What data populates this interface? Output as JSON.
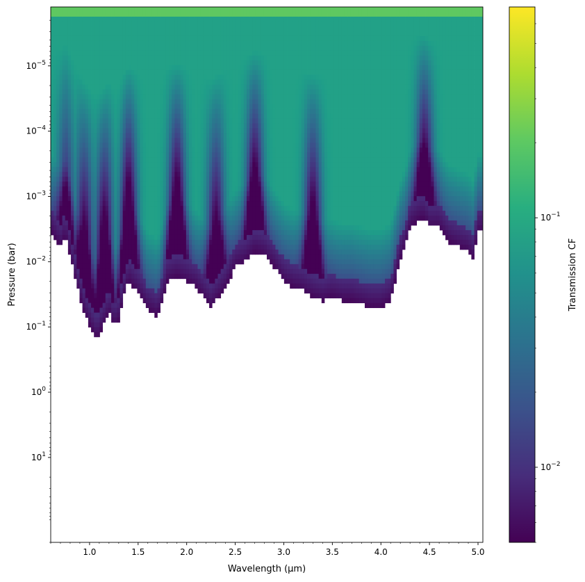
{
  "chart_data": {
    "type": "heatmap",
    "title": "",
    "xlabel": "Wavelength (μm)",
    "ylabel": "Pressure (bar)",
    "colorbar_label": "Transmission CF",
    "colormap": "viridis",
    "x_range": [
      0.6,
      5.05
    ],
    "y_range_bar": [
      1.25e-06,
      200
    ],
    "y_scale": "log",
    "y_inverted": true,
    "x_ticks": [
      1.0,
      1.5,
      2.0,
      2.5,
      3.0,
      3.5,
      4.0,
      4.5,
      5.0
    ],
    "x_tick_labels": [
      "1.0",
      "1.5",
      "2.0",
      "2.5",
      "3.0",
      "3.5",
      "4.0",
      "4.5",
      "5.0"
    ],
    "y_ticks": [
      1e-05,
      0.0001,
      0.001,
      0.01,
      0.1,
      1.0,
      10.0
    ],
    "y_tick_labels": [
      {
        "base": "10",
        "exp": "−5"
      },
      {
        "base": "10",
        "exp": "−4"
      },
      {
        "base": "10",
        "exp": "−3"
      },
      {
        "base": "10",
        "exp": "−2"
      },
      {
        "base": "10",
        "exp": "−1"
      },
      {
        "base": "10",
        "exp": "0"
      },
      {
        "base": "10",
        "exp": "1"
      }
    ],
    "colorbar_range": [
      0.005,
      0.7
    ],
    "colorbar_scale": "log",
    "colorbar_ticks": [
      0.01,
      0.1
    ],
    "colorbar_tick_labels": [
      {
        "base": "10",
        "exp": "−2"
      },
      {
        "base": "10",
        "exp": "−1"
      }
    ],
    "cutoff_pressure_bar": [
      [
        0.6,
        0.0035
      ],
      [
        0.65,
        0.0045
      ],
      [
        0.7,
        0.006
      ],
      [
        0.75,
        0.004
      ],
      [
        0.8,
        0.008
      ],
      [
        0.85,
        0.018
      ],
      [
        0.9,
        0.035
      ],
      [
        0.95,
        0.065
      ],
      [
        1.0,
        0.095
      ],
      [
        1.05,
        0.14
      ],
      [
        1.08,
        0.16
      ],
      [
        1.1,
        0.13
      ],
      [
        1.15,
        0.09
      ],
      [
        1.2,
        0.06
      ],
      [
        1.25,
        0.1
      ],
      [
        1.3,
        0.08
      ],
      [
        1.35,
        0.035
      ],
      [
        1.4,
        0.02
      ],
      [
        1.5,
        0.03
      ],
      [
        1.6,
        0.055
      ],
      [
        1.65,
        0.06
      ],
      [
        1.7,
        0.07
      ],
      [
        1.75,
        0.04
      ],
      [
        1.8,
        0.02
      ],
      [
        1.9,
        0.017
      ],
      [
        2.0,
        0.02
      ],
      [
        2.1,
        0.025
      ],
      [
        2.2,
        0.04
      ],
      [
        2.25,
        0.05
      ],
      [
        2.3,
        0.04
      ],
      [
        2.4,
        0.025
      ],
      [
        2.5,
        0.012
      ],
      [
        2.6,
        0.01
      ],
      [
        2.7,
        0.007
      ],
      [
        2.8,
        0.008
      ],
      [
        2.9,
        0.012
      ],
      [
        3.0,
        0.02
      ],
      [
        3.1,
        0.025
      ],
      [
        3.2,
        0.028
      ],
      [
        3.3,
        0.035
      ],
      [
        3.4,
        0.04
      ],
      [
        3.5,
        0.035
      ],
      [
        3.6,
        0.04
      ],
      [
        3.7,
        0.04
      ],
      [
        3.8,
        0.045
      ],
      [
        3.9,
        0.05
      ],
      [
        4.0,
        0.05
      ],
      [
        4.1,
        0.04
      ],
      [
        4.2,
        0.009
      ],
      [
        4.25,
        0.006
      ],
      [
        4.3,
        0.003
      ],
      [
        4.4,
        0.0022
      ],
      [
        4.45,
        0.0022
      ],
      [
        4.5,
        0.003
      ],
      [
        4.6,
        0.003
      ],
      [
        4.7,
        0.005
      ],
      [
        4.8,
        0.006
      ],
      [
        4.9,
        0.007
      ],
      [
        4.95,
        0.009
      ],
      [
        5.0,
        0.0035
      ],
      [
        5.05,
        0.0035
      ]
    ],
    "absorption_bands_um": [
      {
        "center": 0.76,
        "strength": 0.6
      },
      {
        "center": 0.95,
        "strength": 0.8
      },
      {
        "center": 1.15,
        "strength": 0.9
      },
      {
        "center": 1.4,
        "strength": 1.0
      },
      {
        "center": 1.9,
        "strength": 1.0
      },
      {
        "center": 2.3,
        "strength": 0.8
      },
      {
        "center": 2.7,
        "strength": 1.0
      },
      {
        "center": 3.3,
        "strength": 0.9
      },
      {
        "center": 4.45,
        "strength": 1.0
      }
    ]
  }
}
